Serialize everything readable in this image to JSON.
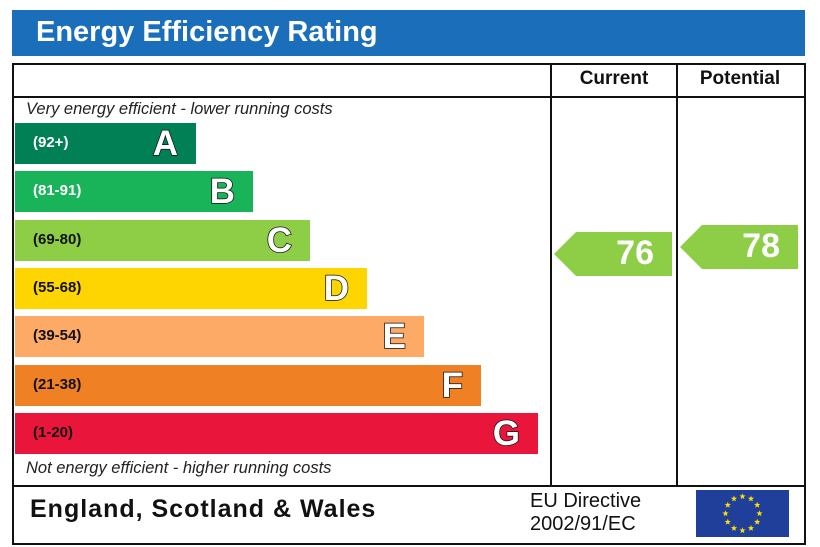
{
  "title": "Energy Efficiency Rating",
  "columns": {
    "current": "Current",
    "potential": "Potential"
  },
  "notes": {
    "top": "Very energy efficient - lower running costs",
    "bottom": "Not energy efficient - higher running costs"
  },
  "footer": {
    "region": "England, Scotland & Wales",
    "directive_line1": "EU Directive",
    "directive_line2": "2002/91/EC",
    "flag_icon": "eu-flag-icon"
  },
  "colors": {
    "title_bar": "#1b6fba",
    "flag": "#1f3f9a",
    "flag_stars": "#ffdd00"
  },
  "chart_data": {
    "type": "bar",
    "title": "Energy Efficiency Rating",
    "bands": [
      {
        "letter": "A",
        "range": "(92+)",
        "min": 92,
        "max": 100,
        "color": "#008054",
        "text_color": "#ffffff"
      },
      {
        "letter": "B",
        "range": "(81-91)",
        "min": 81,
        "max": 91,
        "color": "#19b459",
        "text_color": "#ffffff"
      },
      {
        "letter": "C",
        "range": "(69-80)",
        "min": 69,
        "max": 80,
        "color": "#8dce46",
        "text_color": "#111111"
      },
      {
        "letter": "D",
        "range": "(55-68)",
        "min": 55,
        "max": 68,
        "color": "#ffd500",
        "text_color": "#111111"
      },
      {
        "letter": "E",
        "range": "(39-54)",
        "min": 39,
        "max": 54,
        "color": "#fcaa65",
        "text_color": "#111111"
      },
      {
        "letter": "F",
        "range": "(21-38)",
        "min": 21,
        "max": 38,
        "color": "#ef8023",
        "text_color": "#111111"
      },
      {
        "letter": "G",
        "range": "(1-20)",
        "min": 1,
        "max": 20,
        "color": "#e9153b",
        "text_color": "#111111"
      }
    ],
    "current": 76,
    "potential": 78
  }
}
